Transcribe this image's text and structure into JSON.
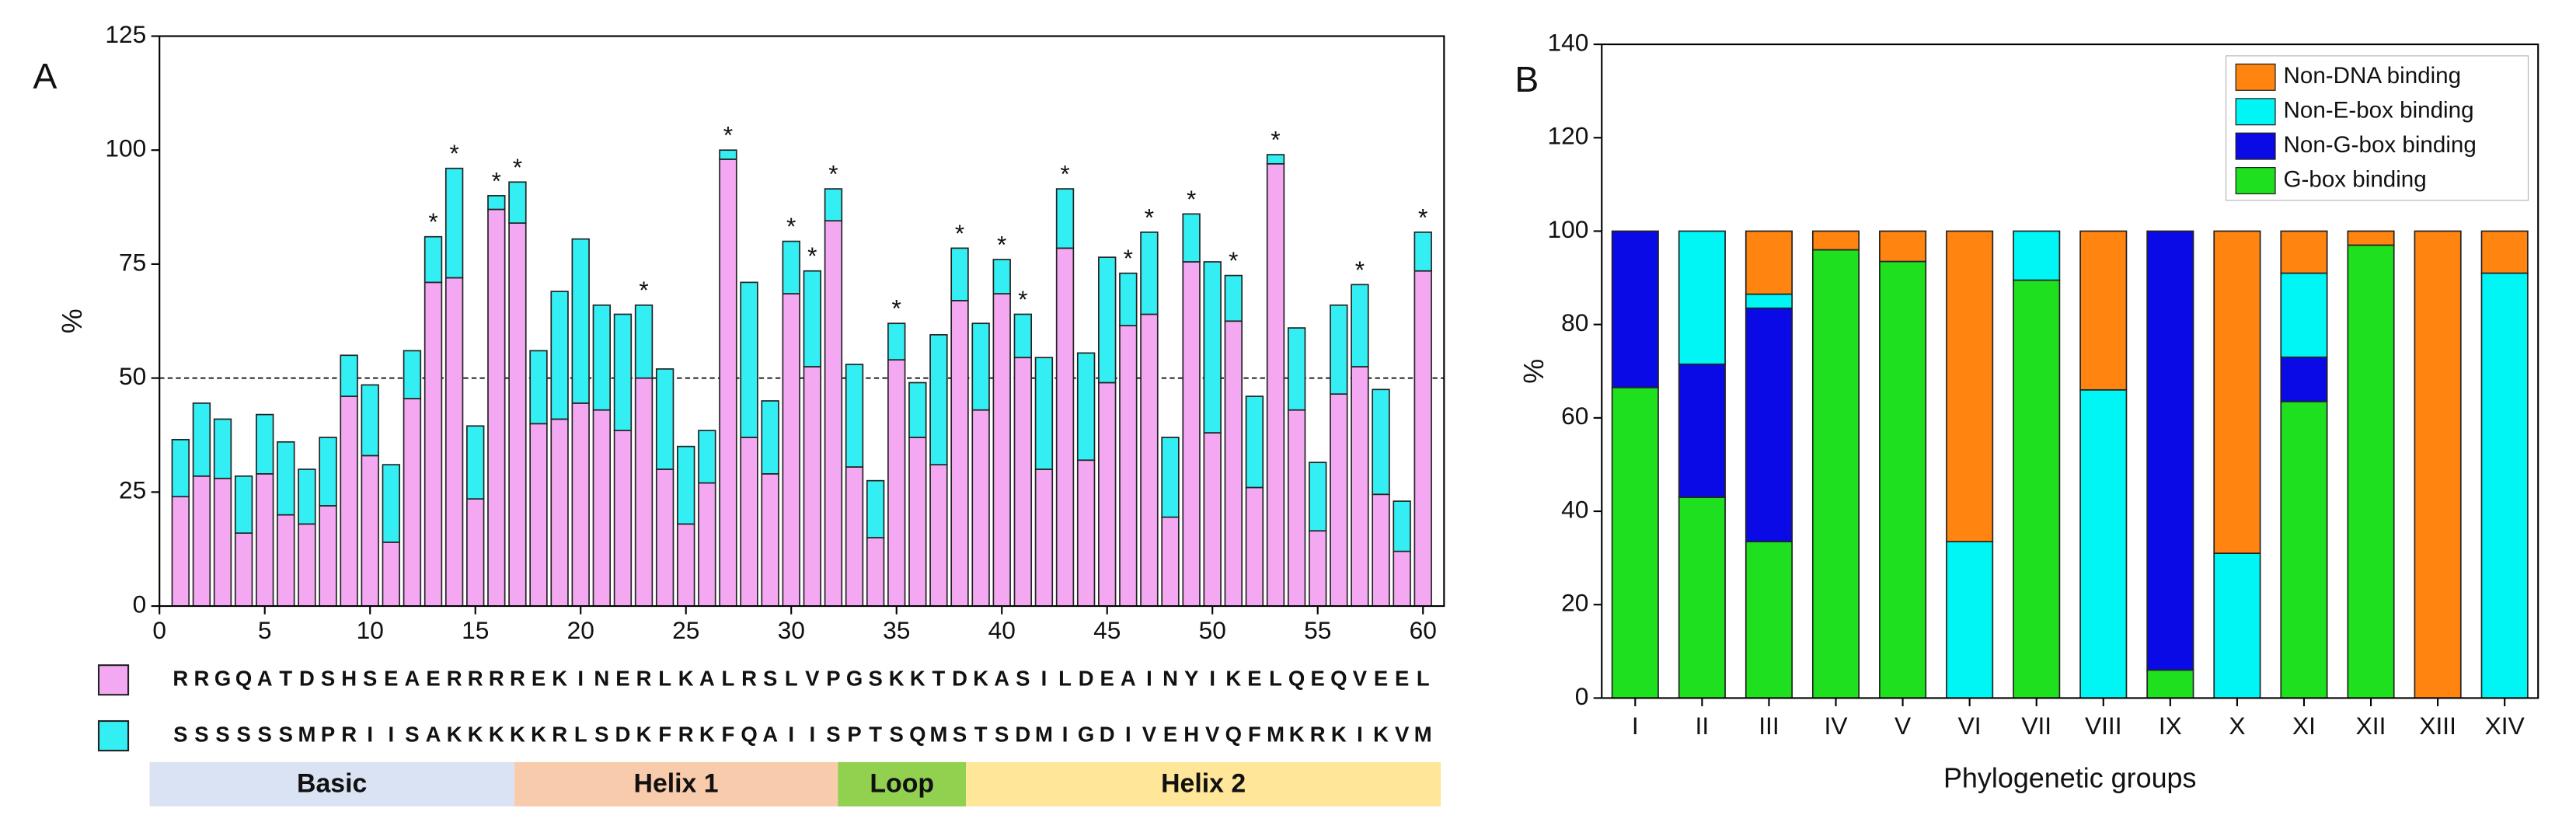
{
  "chart_data": [
    {
      "panel": "A",
      "type": "bar",
      "stacked": true,
      "x": [
        1,
        2,
        3,
        4,
        5,
        6,
        7,
        8,
        9,
        10,
        11,
        12,
        13,
        14,
        15,
        16,
        17,
        18,
        19,
        20,
        21,
        22,
        23,
        24,
        25,
        26,
        27,
        28,
        29,
        30,
        31,
        32,
        33,
        34,
        35,
        36,
        37,
        38,
        39,
        40,
        41,
        42,
        43,
        44,
        45,
        46,
        47,
        48,
        49,
        50,
        51,
        52,
        53,
        54,
        55,
        56,
        57,
        58,
        59,
        60
      ],
      "series": [
        {
          "color": "#f4a8f2",
          "values": [
            24,
            28.5,
            28,
            16,
            29,
            20,
            18,
            22,
            46,
            33,
            14,
            45.5,
            71,
            72,
            23.5,
            87,
            84,
            40,
            41,
            44.5,
            43,
            38.5,
            50,
            30,
            18,
            27,
            98,
            37,
            29,
            68.5,
            52.5,
            84.5,
            30.5,
            15,
            54,
            37,
            31,
            67,
            43,
            68.5,
            54.5,
            30,
            78.5,
            32,
            49,
            61.5,
            64,
            19.5,
            75.5,
            38,
            62.5,
            26,
            97,
            43,
            16.5,
            46.5,
            52.5,
            24.5,
            12,
            73.5
          ],
          "residues": [
            "R",
            "R",
            "G",
            "Q",
            "A",
            "T",
            "D",
            "S",
            "H",
            "S",
            "E",
            "A",
            "E",
            "R",
            "R",
            "R",
            "R",
            "E",
            "K",
            "I",
            "N",
            "E",
            "R",
            "L",
            "K",
            "A",
            "L",
            "R",
            "S",
            "L",
            "V",
            "P",
            "G",
            "S",
            "K",
            "K",
            "T",
            "D",
            "K",
            "A",
            "S",
            "I",
            "L",
            "D",
            "E",
            "A",
            "I",
            "N",
            "Y",
            "I",
            "K",
            "E",
            "L",
            "Q",
            "E",
            "Q",
            "V",
            "E",
            "E",
            "L"
          ]
        },
        {
          "color": "#33eef2",
          "values": [
            12.5,
            16,
            13,
            12.5,
            13,
            16,
            12,
            15,
            9,
            15.5,
            17,
            10.5,
            10,
            24,
            16,
            3,
            9,
            16,
            28,
            36,
            23,
            25.5,
            16,
            22,
            17,
            11.5,
            2,
            34,
            16,
            11.5,
            21,
            7,
            22.5,
            12.5,
            8,
            12,
            28.5,
            11.5,
            19,
            7.5,
            9.5,
            24.5,
            13,
            23.5,
            27.5,
            11.5,
            18,
            17.5,
            10.5,
            37.5,
            10,
            20,
            2,
            18,
            15,
            19.5,
            18,
            23,
            11,
            8.5
          ],
          "residues": [
            "S",
            "S",
            "S",
            "S",
            "S",
            "S",
            "M",
            "P",
            "R",
            "I",
            "I",
            "S",
            "A",
            "K",
            "K",
            "K",
            "K",
            "K",
            "R",
            "L",
            "S",
            "D",
            "K",
            "F",
            "R",
            "K",
            "F",
            "Q",
            "A",
            "I",
            "I",
            "S",
            "P",
            "T",
            "S",
            "Q",
            "M",
            "S",
            "T",
            "S",
            "D",
            "M",
            "I",
            "G",
            "D",
            "I",
            "V",
            "E",
            "H",
            "V",
            "Q",
            "F",
            "M",
            "K",
            "R",
            "K",
            "I",
            "K",
            "V",
            "M"
          ]
        }
      ],
      "xlim": [
        0,
        61
      ],
      "xticks": [
        0,
        5,
        10,
        15,
        20,
        25,
        30,
        35,
        40,
        45,
        50,
        55,
        60
      ],
      "ylim": [
        0,
        125
      ],
      "yticks": [
        0,
        25,
        50,
        75,
        100,
        125
      ],
      "ylabel": "%",
      "reference_line": 50,
      "marker": "*",
      "marked_x": [
        13,
        14,
        16,
        17,
        23,
        27,
        30,
        31,
        32,
        35,
        38,
        40,
        41,
        43,
        46,
        47,
        49,
        51,
        53,
        57,
        60
      ],
      "regions": [
        "Basic",
        "Helix 1",
        "Loop",
        "Helix 2"
      ],
      "region_colors": [
        "#dae3f3",
        "#f8cbad",
        "#92d050",
        "#ffe699"
      ]
    },
    {
      "panel": "B",
      "type": "bar",
      "stacked": true,
      "categories": [
        "I",
        "II",
        "III",
        "IV",
        "V",
        "VI",
        "VII",
        "VIII",
        "IX",
        "X",
        "XI",
        "XII",
        "XIII",
        "XIV"
      ],
      "series": [
        {
          "name": "G-box binding",
          "color": "#1ee01e",
          "values": [
            66.5,
            43,
            33.5,
            96,
            93.5,
            0,
            89.5,
            0,
            6,
            0,
            63.5,
            97,
            0,
            0
          ]
        },
        {
          "name": "Non-G-box binding",
          "color": "#0a0ae6",
          "values": [
            33.5,
            28.5,
            50,
            0,
            0,
            0,
            0,
            0,
            94,
            0,
            9.5,
            0,
            0,
            0
          ]
        },
        {
          "name": "Non-E-box binding",
          "color": "#00f5f5",
          "values": [
            0,
            28.5,
            3,
            0,
            0,
            33.5,
            10.5,
            66,
            0,
            31,
            18,
            0,
            0,
            91
          ]
        },
        {
          "name": "Non-DNA binding",
          "color": "#ff8410",
          "values": [
            0,
            0,
            13.5,
            4,
            6.5,
            66.5,
            0,
            34,
            0,
            69,
            9,
            3,
            100,
            9
          ]
        }
      ],
      "ylim": [
        0,
        140
      ],
      "yticks": [
        0,
        20,
        40,
        60,
        80,
        100,
        120,
        140
      ],
      "xlabel": "Phylogenetic groups",
      "ylabel": "%",
      "legend": "upper right"
    }
  ]
}
